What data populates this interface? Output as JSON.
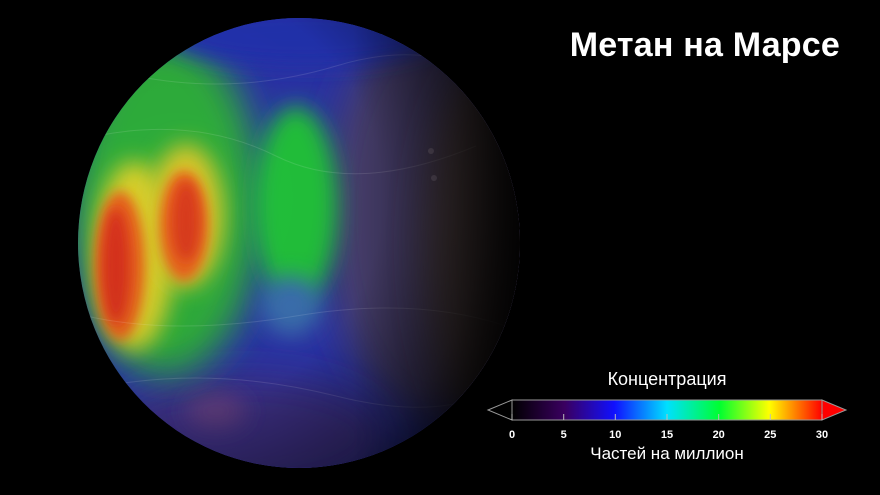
{
  "title": "Метан на Марсе",
  "legend": {
    "title": "Концентрация",
    "unit": "Частей на миллион",
    "ticks": [
      "0",
      "5",
      "10",
      "15",
      "20",
      "25",
      "30"
    ],
    "range": [
      0,
      30
    ],
    "colors": [
      "#000000",
      "#3a0060",
      "#1010ff",
      "#00e0ff",
      "#00ff30",
      "#ffff00",
      "#ff0000"
    ],
    "under_color": "#000000",
    "over_color": "#ff0000"
  },
  "image": {
    "subject": "mars-globe-methane-map",
    "background": "#000000"
  }
}
